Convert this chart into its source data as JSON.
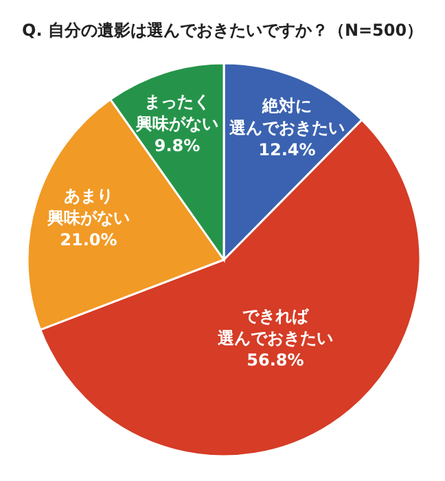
{
  "chart_data": {
    "type": "pie",
    "title": "Q. 自分の遺影は選んでおきたいですか？（N=500）",
    "categories": [
      "絶対に選んでおきたい",
      "できれば選んでおきたい",
      "あまり興味がない",
      "まったく興味がない"
    ],
    "values": [
      12.4,
      56.8,
      21.0,
      9.8
    ],
    "colors": [
      "#3a62b0",
      "#d63c26",
      "#f19a26",
      "#25944a"
    ],
    "value_labels": [
      "12.4%",
      "56.8%",
      "21.0%",
      "9.8%"
    ]
  }
}
